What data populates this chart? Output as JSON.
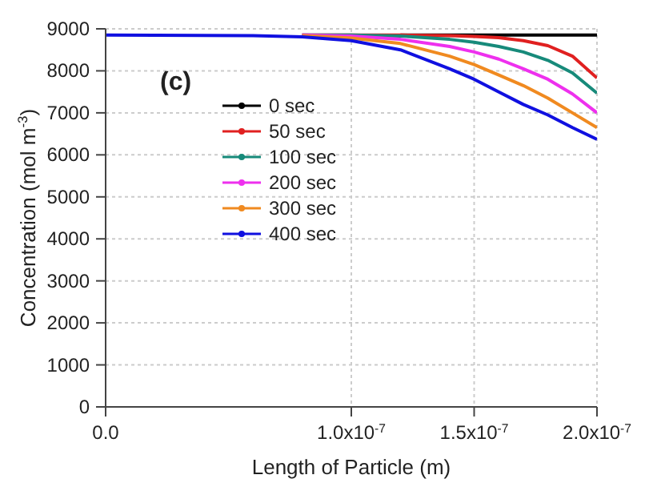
{
  "chart_data": {
    "type": "line",
    "annotations": [
      "(c)"
    ],
    "xlabel": "Length of Particle (m)",
    "ylabel": "Concentration (mol m$^{-3}$)",
    "x": [
      0,
      6e-08,
      8e-08,
      1e-07,
      1.2e-07,
      1.4e-07,
      1.5e-07,
      1.6e-07,
      1.7e-07,
      1.8e-07,
      1.9e-07,
      2e-07
    ],
    "xlim": [
      0,
      2e-07
    ],
    "xticks": [
      {
        "value": 0,
        "label": "0.0"
      },
      {
        "value": 1e-07,
        "label": "1.0x10$^{-7}$"
      },
      {
        "value": 1.5e-07,
        "label": "1.5x10$^{-7}$"
      },
      {
        "value": 2e-07,
        "label": "2.0x10$^{-7}$"
      }
    ],
    "ylim": [
      0,
      9000
    ],
    "yticks": [
      0,
      1000,
      2000,
      3000,
      4000,
      5000,
      6000,
      7000,
      8000,
      9000
    ],
    "grid": true,
    "legend": "top left",
    "marker": "none",
    "line_style": "solid",
    "series": [
      {
        "name": "0 sec",
        "color": "#000000",
        "values": [
          null,
          null,
          null,
          null,
          8850,
          8850,
          8850,
          8850,
          8850,
          8850,
          8850,
          8850
        ]
      },
      {
        "name": "50 sec",
        "color": "#e02020",
        "values": [
          null,
          null,
          8850,
          8850,
          8850,
          8840,
          8820,
          8790,
          8720,
          8600,
          8350,
          7830
        ]
      },
      {
        "name": "100 sec",
        "color": "#178a7a",
        "values": [
          null,
          null,
          8850,
          8850,
          8830,
          8750,
          8680,
          8580,
          8450,
          8250,
          7950,
          7470
        ]
      },
      {
        "name": "200 sec",
        "color": "#ee30ee",
        "values": [
          null,
          null,
          8850,
          8830,
          8750,
          8580,
          8450,
          8280,
          8050,
          7800,
          7450,
          7000
        ]
      },
      {
        "name": "300 sec",
        "color": "#f08a20",
        "values": [
          null,
          null,
          8840,
          8780,
          8650,
          8350,
          8150,
          7900,
          7650,
          7350,
          7000,
          6650
        ]
      },
      {
        "name": "400 sec",
        "color": "#1010e0",
        "values": [
          8850,
          8840,
          8810,
          8720,
          8500,
          8050,
          7800,
          7500,
          7200,
          6950,
          6650,
          6370
        ]
      }
    ]
  }
}
